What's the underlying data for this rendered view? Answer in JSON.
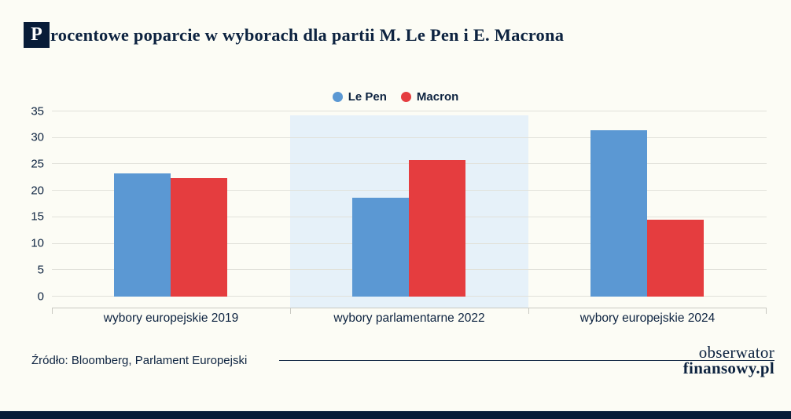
{
  "header": {
    "title_initial": "P",
    "title_rest": "rocentowe poparcie w wyborach dla partii M. Le Pen i E. Macrona"
  },
  "chart_data": {
    "type": "bar",
    "title": "Procentowe poparcie w wyborach dla partii M. Le Pen i E. Macrona",
    "categories": [
      "wybory europejskie 2019",
      "wybory parlamentarne 2022",
      "wybory europejskie 2024"
    ],
    "series": [
      {
        "name": "Le Pen",
        "color": "#5b98d3",
        "values": [
          23.3,
          18.7,
          31.4
        ]
      },
      {
        "name": "Macron",
        "color": "#e53d3f",
        "values": [
          22.4,
          25.8,
          14.6
        ]
      }
    ],
    "xlabel": "",
    "ylabel": "",
    "ylim": [
      0,
      35
    ],
    "yticks": [
      0,
      5,
      10,
      15,
      20,
      25,
      30,
      35
    ],
    "grid": true,
    "legend_position": "top",
    "highlighted_category": "wybory parlamentarne 2022"
  },
  "footer": {
    "source": "Źródło: Bloomberg, Parlament Europejski",
    "logo_line1": "obserwator",
    "logo_line2": "finansowy.pl"
  },
  "colors": {
    "navy": "#0d2340",
    "dark_navy": "#081c38",
    "band": "#e6f1f9",
    "grid": "#e1e1da",
    "background": "#fcfcf5"
  }
}
